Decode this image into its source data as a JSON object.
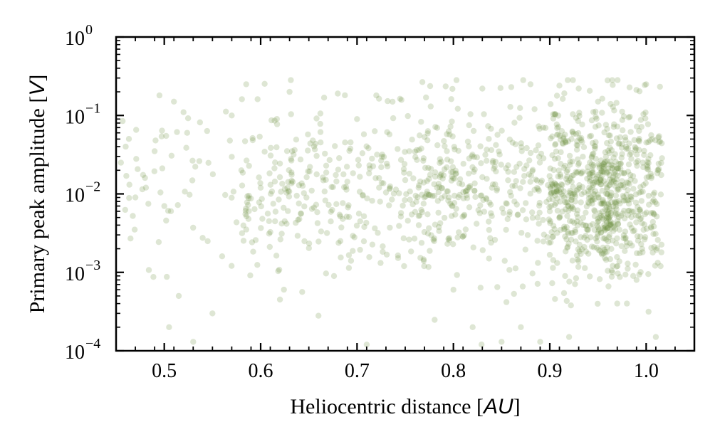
{
  "chart_data": {
    "type": "scatter",
    "title": "",
    "xlabel": "Heliocentric distance",
    "xlabel_unit": "AU",
    "ylabel": "Primary peak amplitude",
    "ylabel_unit": "V",
    "xlim": [
      0.45,
      1.05
    ],
    "ylim": [
      0.0001,
      1
    ],
    "yscale": "log",
    "grid": false,
    "legend": "none",
    "x_ticks": [
      0.5,
      0.6,
      0.7,
      0.8,
      0.9,
      1.0
    ],
    "x_tick_labels": [
      "0.5",
      "0.6",
      "0.7",
      "0.8",
      "0.9",
      "1.0"
    ],
    "y_ticks": [
      0.0001,
      0.001,
      0.01,
      0.1,
      1
    ],
    "y_tick_labels": [
      {
        "base": "10",
        "exp": "−4"
      },
      {
        "base": "10",
        "exp": "−3"
      },
      {
        "base": "10",
        "exp": "−2"
      },
      {
        "base": "10",
        "exp": "−1"
      },
      {
        "base": "10",
        "exp": "0"
      }
    ],
    "marker_color": "#6b8e3a",
    "marker_opacity": 0.22,
    "approx_point_count": 1500,
    "x_sampling_note": "points concentrated between 0.58 and 1.02 AU, densest near 0.96 AU",
    "points_sample": [
      [
        0.455,
        0.025
      ],
      [
        0.46,
        0.04
      ],
      [
        0.465,
        0.0027
      ],
      [
        0.47,
        0.009
      ],
      [
        0.48,
        0.016
      ],
      [
        0.49,
        0.035
      ],
      [
        0.495,
        0.18
      ],
      [
        0.5,
        0.007
      ],
      [
        0.505,
        0.0002
      ],
      [
        0.51,
        0.15
      ],
      [
        0.515,
        0.0005
      ],
      [
        0.52,
        0.11
      ],
      [
        0.53,
        0.00013
      ],
      [
        0.545,
        0.0025
      ],
      [
        0.55,
        0.0003
      ],
      [
        0.56,
        0.0016
      ],
      [
        0.57,
        0.1
      ],
      [
        0.58,
        0.02
      ],
      [
        0.585,
        0.25
      ],
      [
        0.6,
        0.012
      ],
      [
        0.62,
        0.00045
      ],
      [
        0.63,
        0.2
      ],
      [
        0.66,
        0.00028
      ],
      [
        0.68,
        0.19
      ],
      [
        0.7,
        0.09
      ],
      [
        0.71,
        0.00012
      ],
      [
        0.72,
        0.18
      ],
      [
        0.75,
        0.015
      ],
      [
        0.78,
        0.0025
      ],
      [
        0.8,
        0.0006
      ],
      [
        0.82,
        0.0002
      ],
      [
        0.83,
        0.22
      ],
      [
        0.84,
        0.012
      ],
      [
        0.85,
        0.00013
      ],
      [
        0.86,
        0.23
      ],
      [
        0.87,
        0.0002
      ],
      [
        0.88,
        0.25
      ],
      [
        0.89,
        0.00013
      ],
      [
        0.9,
        0.006
      ],
      [
        0.91,
        0.24
      ],
      [
        0.92,
        0.00015
      ],
      [
        0.93,
        0.22
      ],
      [
        0.94,
        0.01
      ],
      [
        0.95,
        0.15
      ],
      [
        0.96,
        0.28
      ],
      [
        0.965,
        0.001
      ],
      [
        0.97,
        0.0004
      ],
      [
        0.98,
        0.0004
      ],
      [
        0.99,
        0.0008
      ],
      [
        1.0,
        0.25
      ],
      [
        1.01,
        0.00015
      ],
      [
        1.015,
        0.0012
      ]
    ]
  }
}
